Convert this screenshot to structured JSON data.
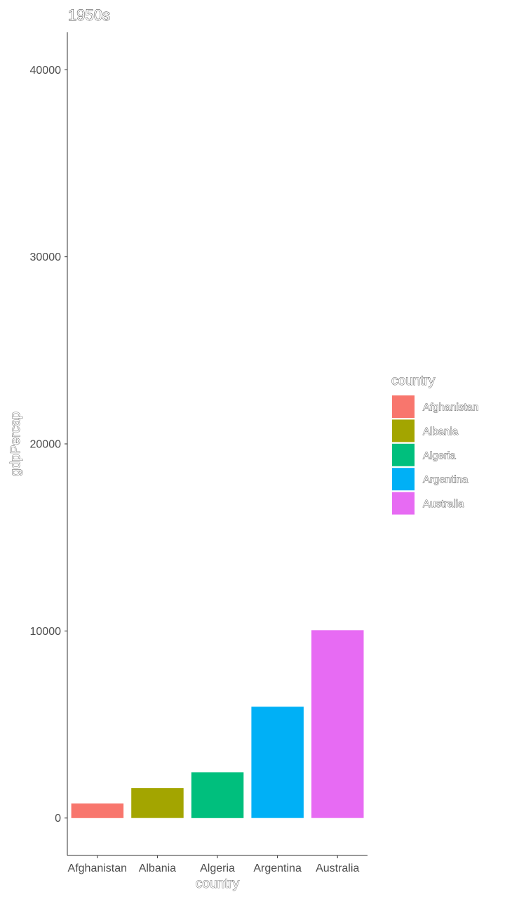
{
  "chart_data": {
    "type": "bar",
    "title": "1950s",
    "xlabel": "country",
    "ylabel": "gdpPercap",
    "categories": [
      "Afghanistan",
      "Albania",
      "Algeria",
      "Argentina",
      "Australia"
    ],
    "values": [
      780,
      1600,
      2450,
      5950,
      10040
    ],
    "colors": [
      "#F8766D",
      "#A3A500",
      "#00BF7D",
      "#00B0F6",
      "#E76BF3"
    ],
    "ylim": [
      -2000,
      42000
    ],
    "yticks": [
      0,
      10000,
      20000,
      30000,
      40000
    ],
    "yticklabels": [
      "0",
      "10000",
      "20000",
      "30000",
      "40000"
    ],
    "grid": false,
    "legend": {
      "title": "country",
      "position": "right",
      "items": [
        "Afghanistan",
        "Albania",
        "Algeria",
        "Argentina",
        "Australia"
      ]
    }
  }
}
